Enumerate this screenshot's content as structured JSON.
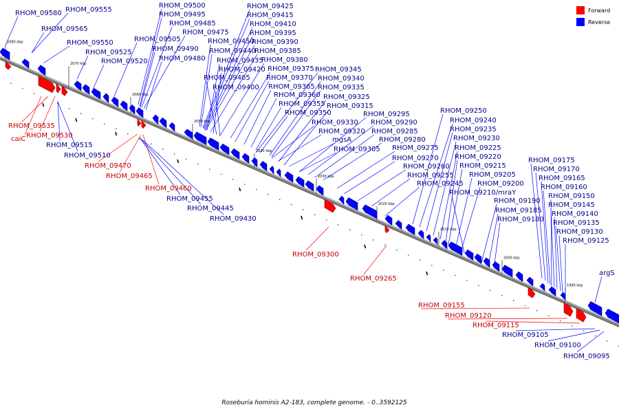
{
  "title": "Roseburia hominis A2-183, complete genome. - 0..3592125",
  "legend": [
    {
      "label": "Forward",
      "color": "#ff0000"
    },
    {
      "label": "Reverse",
      "color": "#0000ff"
    }
  ],
  "colors": {
    "forward": "#ff0000",
    "reverse": "#0000ff",
    "backbone": "#808080"
  },
  "ticks": [
    "2080 kbp",
    "2070 kbp",
    "2060 kbp",
    "2050 kbp",
    "2040 kbp",
    "2030 kbp",
    "2020 kbp",
    "2010 kbp",
    "2000 kbp",
    "1990 kbp"
  ],
  "genes": [
    {
      "name": "RHOM_09580",
      "strand": "reverse"
    },
    {
      "name": "RHOM_09555",
      "strand": "reverse"
    },
    {
      "name": "RHOM_09565",
      "strand": "reverse"
    },
    {
      "name": "RHOM_09550",
      "strand": "reverse"
    },
    {
      "name": "RHOM_09525",
      "strand": "reverse"
    },
    {
      "name": "RHOM_09520",
      "strand": "reverse"
    },
    {
      "name": "RHOM_09505",
      "strand": "reverse"
    },
    {
      "name": "RHOM_09500",
      "strand": "reverse"
    },
    {
      "name": "RHOM_09495",
      "strand": "reverse"
    },
    {
      "name": "RHOM_09485",
      "strand": "reverse"
    },
    {
      "name": "RHOM_09475",
      "strand": "reverse"
    },
    {
      "name": "RHOM_09490",
      "strand": "reverse"
    },
    {
      "name": "RHOM_09480",
      "strand": "reverse"
    },
    {
      "name": "RHOM_09425",
      "strand": "reverse"
    },
    {
      "name": "RHOM_09415",
      "strand": "reverse"
    },
    {
      "name": "RHOM_09410",
      "strand": "reverse"
    },
    {
      "name": "RHOM_09395",
      "strand": "reverse"
    },
    {
      "name": "RHOM_09390",
      "strand": "reverse"
    },
    {
      "name": "RHOM_09450",
      "strand": "reverse"
    },
    {
      "name": "RHOM_09385",
      "strand": "reverse"
    },
    {
      "name": "RHOM_09440",
      "strand": "reverse"
    },
    {
      "name": "RHOM_09380",
      "strand": "reverse"
    },
    {
      "name": "RHOM_09435",
      "strand": "reverse"
    },
    {
      "name": "RHOM_09420",
      "strand": "reverse"
    },
    {
      "name": "RHOM_09375",
      "strand": "reverse"
    },
    {
      "name": "RHOM_09345",
      "strand": "reverse"
    },
    {
      "name": "RHOM_09405",
      "strand": "reverse"
    },
    {
      "name": "RHOM_09370",
      "strand": "reverse"
    },
    {
      "name": "RHOM_09340",
      "strand": "reverse"
    },
    {
      "name": "RHOM_09400",
      "strand": "reverse"
    },
    {
      "name": "RHOM_09365",
      "strand": "reverse"
    },
    {
      "name": "RHOM_09335",
      "strand": "reverse"
    },
    {
      "name": "RHOM_09360",
      "strand": "reverse"
    },
    {
      "name": "RHOM_09325",
      "strand": "reverse"
    },
    {
      "name": "RHOM_09355",
      "strand": "reverse"
    },
    {
      "name": "RHOM_09315",
      "strand": "reverse"
    },
    {
      "name": "RHOM_09350",
      "strand": "reverse"
    },
    {
      "name": "RHOM_09295",
      "strand": "reverse"
    },
    {
      "name": "RHOM_09330",
      "strand": "reverse"
    },
    {
      "name": "RHOM_09290",
      "strand": "reverse"
    },
    {
      "name": "RHOM_09320",
      "strand": "reverse"
    },
    {
      "name": "RHOM_09285",
      "strand": "reverse"
    },
    {
      "name": "mgsA",
      "strand": "reverse"
    },
    {
      "name": "RHOM_09280",
      "strand": "reverse"
    },
    {
      "name": "RHOM_09305",
      "strand": "reverse"
    },
    {
      "name": "RHOM_09275",
      "strand": "reverse"
    },
    {
      "name": "RHOM_09270",
      "strand": "reverse"
    },
    {
      "name": "RHOM_09260",
      "strand": "reverse"
    },
    {
      "name": "RHOM_09255",
      "strand": "reverse"
    },
    {
      "name": "RHOM_09245",
      "strand": "reverse"
    },
    {
      "name": "RHOM_09250",
      "strand": "reverse"
    },
    {
      "name": "RHOM_09240",
      "strand": "reverse"
    },
    {
      "name": "RHOM_09235",
      "strand": "reverse"
    },
    {
      "name": "RHOM_09230",
      "strand": "reverse"
    },
    {
      "name": "RHOM_09225",
      "strand": "reverse"
    },
    {
      "name": "RHOM_09220",
      "strand": "reverse"
    },
    {
      "name": "RHOM_09215",
      "strand": "reverse"
    },
    {
      "name": "RHOM_09205",
      "strand": "reverse"
    },
    {
      "name": "RHOM_09200",
      "strand": "reverse"
    },
    {
      "name": "RHOM_09210/mraY",
      "strand": "reverse"
    },
    {
      "name": "RHOM_09190",
      "strand": "reverse"
    },
    {
      "name": "RHOM_09185",
      "strand": "reverse"
    },
    {
      "name": "RHOM_09180",
      "strand": "reverse"
    },
    {
      "name": "RHOM_09175",
      "strand": "reverse"
    },
    {
      "name": "RHOM_09170",
      "strand": "reverse"
    },
    {
      "name": "RHOM_09165",
      "strand": "reverse"
    },
    {
      "name": "RHOM_09160",
      "strand": "reverse"
    },
    {
      "name": "RHOM_09150",
      "strand": "reverse"
    },
    {
      "name": "RHOM_09145",
      "strand": "reverse"
    },
    {
      "name": "RHOM_09140",
      "strand": "reverse"
    },
    {
      "name": "RHOM_09135",
      "strand": "reverse"
    },
    {
      "name": "RHOM_09130",
      "strand": "reverse"
    },
    {
      "name": "RHOM_09125",
      "strand": "reverse"
    },
    {
      "name": "argS",
      "strand": "reverse"
    },
    {
      "name": "RHOM_09535",
      "strand": "forward"
    },
    {
      "name": "caiC",
      "strand": "forward"
    },
    {
      "name": "RHOM_09530",
      "strand": "forward"
    },
    {
      "name": "RHOM_09515",
      "strand": "reverse"
    },
    {
      "name": "RHOM_09510",
      "strand": "reverse"
    },
    {
      "name": "RHOM_09470",
      "strand": "forward"
    },
    {
      "name": "RHOM_09465",
      "strand": "forward"
    },
    {
      "name": "RHOM_09460",
      "strand": "forward"
    },
    {
      "name": "RHOM_09455",
      "strand": "reverse"
    },
    {
      "name": "RHOM_09445",
      "strand": "reverse"
    },
    {
      "name": "RHOM_09430",
      "strand": "reverse"
    },
    {
      "name": "RHOM_09300",
      "strand": "forward"
    },
    {
      "name": "RHOM_09265",
      "strand": "forward"
    },
    {
      "name": "RHOM_09155",
      "strand": "forward"
    },
    {
      "name": "RHOM_09120",
      "strand": "forward"
    },
    {
      "name": "RHOM_09115",
      "strand": "forward"
    },
    {
      "name": "RHOM_09105",
      "strand": "reverse"
    },
    {
      "name": "RHOM_09100",
      "strand": "reverse"
    },
    {
      "name": "RHOM_09095",
      "strand": "reverse"
    }
  ]
}
